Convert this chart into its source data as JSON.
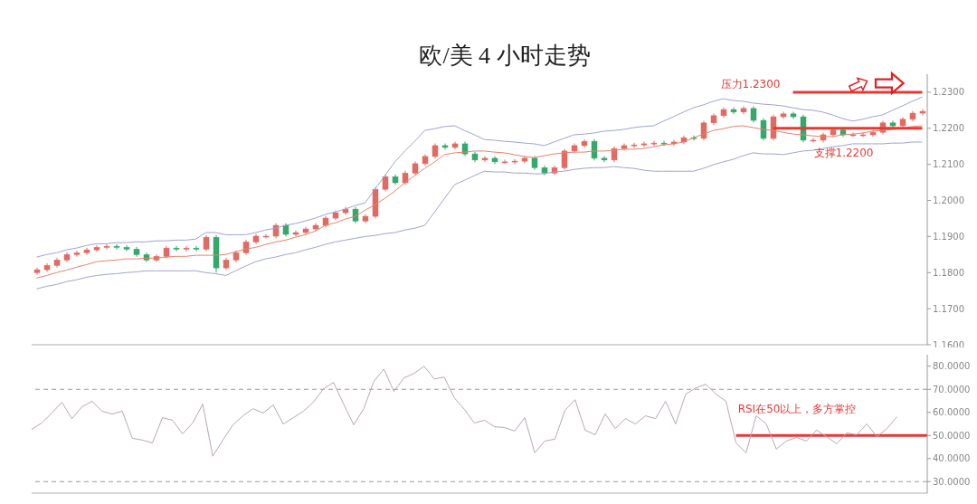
{
  "chart_data": [
    {
      "type": "candlestick",
      "title": "欧/美 4 小时走势",
      "categories": [
        null,
        null,
        null,
        null,
        null,
        null,
        null,
        null,
        null,
        null,
        null,
        null,
        null,
        null,
        null,
        null,
        null,
        null,
        null,
        null,
        null,
        null,
        null,
        null,
        null,
        null,
        null,
        null,
        null,
        null,
        null,
        null,
        null,
        null,
        null,
        null,
        null,
        null,
        null,
        null,
        null,
        null,
        null,
        null,
        null,
        null,
        null,
        null,
        null,
        null,
        null,
        null,
        null,
        null,
        null,
        null,
        null,
        null,
        null,
        null,
        null,
        null,
        null,
        null,
        null,
        null,
        null,
        null,
        null,
        null,
        null,
        null,
        null,
        null,
        null,
        null,
        null,
        null,
        null,
        null,
        null,
        null,
        null,
        null,
        null,
        null,
        null,
        null,
        null,
        null
      ],
      "ohlc": [
        [
          1.18,
          1.1814,
          1.1794,
          1.1808
        ],
        [
          1.1808,
          1.1826,
          1.1802,
          1.182
        ],
        [
          1.182,
          1.1841,
          1.1814,
          1.1835
        ],
        [
          1.1835,
          1.1856,
          1.1829,
          1.185
        ],
        [
          1.185,
          1.1861,
          1.1844,
          1.1855
        ],
        [
          1.1855,
          1.1869,
          1.1849,
          1.1863
        ],
        [
          1.1863,
          1.1876,
          1.1857,
          1.187
        ],
        [
          1.187,
          1.1879,
          1.1864,
          1.1873
        ],
        [
          1.1873,
          1.1879,
          1.1864,
          1.187
        ],
        [
          1.187,
          1.1876,
          1.1859,
          1.1865
        ],
        [
          1.1865,
          1.1871,
          1.1844,
          1.185
        ],
        [
          1.185,
          1.1856,
          1.1829,
          1.1835
        ],
        [
          1.1835,
          1.1851,
          1.1829,
          1.1845
        ],
        [
          1.1845,
          1.1874,
          1.1839,
          1.1868
        ],
        [
          1.1868,
          1.1874,
          1.1859,
          1.1865
        ],
        [
          1.1865,
          1.1874,
          1.1859,
          1.1868
        ],
        [
          1.1868,
          1.1874,
          1.1859,
          1.1865
        ],
        [
          1.1865,
          1.1904,
          1.1859,
          1.1898
        ],
        [
          1.1898,
          1.1904,
          1.18,
          1.1813
        ],
        [
          1.1813,
          1.1841,
          1.1807,
          1.1835
        ],
        [
          1.1835,
          1.1861,
          1.1829,
          1.1855
        ],
        [
          1.1855,
          1.1891,
          1.1849,
          1.1885
        ],
        [
          1.1885,
          1.1907,
          1.1879,
          1.1901
        ],
        [
          1.1901,
          1.1907,
          1.1895,
          1.1901
        ],
        [
          1.1901,
          1.1937,
          1.1895,
          1.1931
        ],
        [
          1.1931,
          1.1937,
          1.19,
          1.1906
        ],
        [
          1.1906,
          1.1917,
          1.19,
          1.1911
        ],
        [
          1.1911,
          1.1927,
          1.1905,
          1.1921
        ],
        [
          1.1921,
          1.1937,
          1.1915,
          1.1931
        ],
        [
          1.1931,
          1.1957,
          1.1925,
          1.1951
        ],
        [
          1.1951,
          1.1972,
          1.1945,
          1.1966
        ],
        [
          1.1966,
          1.1982,
          1.196,
          1.1976
        ],
        [
          1.1976,
          1.1982,
          1.1937,
          1.1943
        ],
        [
          1.1943,
          1.1962,
          1.1937,
          1.1956
        ],
        [
          1.1956,
          1.2037,
          1.195,
          1.2031
        ],
        [
          1.2031,
          1.2072,
          1.2025,
          1.2066
        ],
        [
          1.2066,
          1.2072,
          1.2043,
          1.2049
        ],
        [
          1.2049,
          1.2082,
          1.2043,
          1.2076
        ],
        [
          1.2076,
          1.2108,
          1.207,
          1.2102
        ],
        [
          1.2102,
          1.2128,
          1.2096,
          1.2122
        ],
        [
          1.2122,
          1.2158,
          1.2116,
          1.2152
        ],
        [
          1.2152,
          1.2158,
          1.2141,
          1.2147
        ],
        [
          1.2147,
          1.2163,
          1.2141,
          1.2157
        ],
        [
          1.2157,
          1.2163,
          1.2123,
          1.2129
        ],
        [
          1.2129,
          1.2135,
          1.2106,
          1.2112
        ],
        [
          1.2112,
          1.2123,
          1.2106,
          1.2117
        ],
        [
          1.2117,
          1.2123,
          1.2101,
          1.2107
        ],
        [
          1.2107,
          1.2113,
          1.2101,
          1.2107
        ],
        [
          1.2107,
          1.2115,
          1.2101,
          1.2109
        ],
        [
          1.2109,
          1.2123,
          1.2103,
          1.2117
        ],
        [
          1.2117,
          1.2123,
          1.2085,
          1.2091
        ],
        [
          1.2091,
          1.2097,
          1.207,
          1.2076
        ],
        [
          1.2076,
          1.2097,
          1.207,
          1.2091
        ],
        [
          1.2091,
          1.2143,
          1.2085,
          1.2137
        ],
        [
          1.2137,
          1.2158,
          1.2131,
          1.2152
        ],
        [
          1.2152,
          1.217,
          1.2146,
          1.2164
        ],
        [
          1.2164,
          1.217,
          1.2111,
          1.2117
        ],
        [
          1.2117,
          1.2123,
          1.2106,
          1.2112
        ],
        [
          1.2112,
          1.215,
          1.2106,
          1.2144
        ],
        [
          1.2144,
          1.2158,
          1.2138,
          1.2152
        ],
        [
          1.2152,
          1.216,
          1.2146,
          1.2154
        ],
        [
          1.2154,
          1.2163,
          1.2148,
          1.2157
        ],
        [
          1.2157,
          1.2165,
          1.2151,
          1.2159
        ],
        [
          1.2159,
          1.2165,
          1.2151,
          1.2157
        ],
        [
          1.2157,
          1.2168,
          1.2151,
          1.2162
        ],
        [
          1.2162,
          1.218,
          1.2156,
          1.2174
        ],
        [
          1.2174,
          1.218,
          1.2166,
          1.2172
        ],
        [
          1.2172,
          1.2221,
          1.2166,
          1.2215
        ],
        [
          1.2215,
          1.2241,
          1.2209,
          1.2235
        ],
        [
          1.2235,
          1.2258,
          1.2229,
          1.2252
        ],
        [
          1.2252,
          1.2258,
          1.2239,
          1.2245
        ],
        [
          1.2245,
          1.2261,
          1.2239,
          1.2255
        ],
        [
          1.2255,
          1.2261,
          1.2216,
          1.2222
        ],
        [
          1.2222,
          1.2228,
          1.2166,
          1.2172
        ],
        [
          1.2172,
          1.2238,
          1.2166,
          1.2232
        ],
        [
          1.2232,
          1.2246,
          1.2226,
          1.224
        ],
        [
          1.224,
          1.2246,
          1.2226,
          1.2232
        ],
        [
          1.2232,
          1.2238,
          1.2161,
          1.2167
        ],
        [
          1.2167,
          1.2173,
          1.2161,
          1.2167
        ],
        [
          1.2167,
          1.2188,
          1.2161,
          1.2182
        ],
        [
          1.2182,
          1.2201,
          1.2176,
          1.2195
        ],
        [
          1.2195,
          1.2201,
          1.2176,
          1.2182
        ],
        [
          1.2182,
          1.2188,
          1.2176,
          1.2182
        ],
        [
          1.2182,
          1.2188,
          1.2176,
          1.2182
        ],
        [
          1.2182,
          1.2195,
          1.2176,
          1.2189
        ],
        [
          1.2189,
          1.2221,
          1.2183,
          1.2215
        ],
        [
          1.2215,
          1.2221,
          1.2201,
          1.2207
        ],
        [
          1.2207,
          1.2231,
          1.2201,
          1.2225
        ],
        [
          1.2225,
          1.2248,
          1.2219,
          1.2242
        ],
        [
          1.2242,
          1.2253,
          1.2236,
          1.2247
        ]
      ],
      "colors": [
        "#e06b63",
        "#e06b63",
        "#e06b63",
        "#e06b63",
        "#e06b63",
        "#e06b63",
        "#e06b63",
        "#e06b63",
        "#35a86b",
        "#35a86b",
        "#35a86b",
        "#35a86b",
        "#e06b63",
        "#e06b63",
        "#35a86b",
        "#e06b63",
        "#35a86b",
        "#e06b63",
        "#35a86b",
        "#e06b63",
        "#e06b63",
        "#e06b63",
        "#e06b63",
        "#e06b63",
        "#e06b63",
        "#35a86b",
        "#e06b63",
        "#e06b63",
        "#e06b63",
        "#e06b63",
        "#e06b63",
        "#e06b63",
        "#35a86b",
        "#e06b63",
        "#e06b63",
        "#e06b63",
        "#35a86b",
        "#e06b63",
        "#e06b63",
        "#e06b63",
        "#e06b63",
        "#35a86b",
        "#e06b63",
        "#35a86b",
        "#35a86b",
        "#e06b63",
        "#35a86b",
        "#e06b63",
        "#e06b63",
        "#e06b63",
        "#35a86b",
        "#35a86b",
        "#e06b63",
        "#e06b63",
        "#e06b63",
        "#e06b63",
        "#35a86b",
        "#35a86b",
        "#e06b63",
        "#e06b63",
        "#e06b63",
        "#e06b63",
        "#e06b63",
        "#35a86b",
        "#e06b63",
        "#e06b63",
        "#35a86b",
        "#e06b63",
        "#e06b63",
        "#e06b63",
        "#35a86b",
        "#e06b63",
        "#35a86b",
        "#35a86b",
        "#e06b63",
        "#e06b63",
        "#35a86b",
        "#35a86b",
        "#e06b63",
        "#e06b63",
        "#e06b63",
        "#35a86b",
        "#e06b63",
        "#e06b63",
        "#e06b63",
        "#e06b63",
        "#35a86b",
        "#e06b63",
        "#e06b63",
        "#e06b63"
      ],
      "series": [
        {
          "type": "line",
          "color": "#9ea3d6",
          "values": [
            1.1843,
            1.185,
            1.1855,
            1.1863,
            1.1868,
            1.1875,
            1.188,
            1.188,
            1.1883,
            1.1883,
            1.1885,
            1.1885,
            1.1888,
            1.1888,
            1.189,
            1.189,
            1.1893,
            1.1911,
            1.1911,
            1.1905,
            1.1905,
            1.1905,
            1.1911,
            1.1918,
            1.1923,
            1.1931,
            1.1936,
            1.1943,
            1.1951,
            1.1961,
            1.1968,
            1.1976,
            1.1986,
            1.1993,
            1.2031,
            1.2069,
            1.2107,
            1.2137,
            1.2164,
            1.2194,
            1.2199,
            1.2205,
            1.2207,
            1.2194,
            1.2182,
            1.2169,
            1.2167,
            1.2164,
            1.2162,
            1.2159,
            1.2157,
            1.2152,
            1.2162,
            1.2172,
            1.2182,
            1.2184,
            1.2187,
            1.2192,
            1.2194,
            1.2197,
            1.2202,
            1.2205,
            1.2207,
            1.222,
            1.2232,
            1.2245,
            1.2257,
            1.2265,
            1.2275,
            1.2282,
            1.2277,
            1.2275,
            1.227,
            1.2267,
            1.2265,
            1.2262,
            1.2257,
            1.2252,
            1.225,
            1.2245,
            1.2237,
            1.2227,
            1.222,
            1.2225,
            1.2232,
            1.2237,
            1.225,
            1.2262,
            1.2275,
            1.2287
          ]
        },
        {
          "type": "line",
          "color": "#e8836a",
          "values": [
            1.1785,
            1.1792,
            1.18,
            1.1807,
            1.1815,
            1.1822,
            1.183,
            1.1833,
            1.1835,
            1.1838,
            1.1838,
            1.184,
            1.184,
            1.1843,
            1.1845,
            1.1845,
            1.1848,
            1.1848,
            1.1848,
            1.185,
            1.1858,
            1.1865,
            1.187,
            1.1878,
            1.1885,
            1.189,
            1.1898,
            1.1905,
            1.1915,
            1.1931,
            1.1938,
            1.1948,
            1.1956,
            1.1973,
            1.1988,
            1.2006,
            1.2026,
            1.2049,
            1.2069,
            1.2089,
            1.2107,
            1.2127,
            1.2132,
            1.2134,
            1.2137,
            1.2137,
            1.2134,
            1.2132,
            1.2127,
            1.2122,
            1.2119,
            1.2124,
            1.2129,
            1.2132,
            1.2134,
            1.2134,
            1.2137,
            1.2137,
            1.2139,
            1.2142,
            1.2142,
            1.2144,
            1.2149,
            1.2154,
            1.2157,
            1.2162,
            1.2174,
            1.2184,
            1.2194,
            1.2199,
            1.2205,
            1.2207,
            1.2202,
            1.2197,
            1.2194,
            1.2189,
            1.2184,
            1.2182,
            1.2179,
            1.2177,
            1.2177,
            1.2182,
            1.2184,
            1.2187,
            1.2192,
            1.2194,
            1.2197,
            1.2199,
            1.2205,
            1.2207
          ]
        },
        {
          "type": "line",
          "color": "#9ea3d6",
          "values": [
            1.1755,
            1.1762,
            1.1767,
            1.1775,
            1.178,
            1.1787,
            1.1792,
            1.1795,
            1.1797,
            1.18,
            1.1802,
            1.1805,
            1.1805,
            1.1805,
            1.1805,
            1.1805,
            1.1805,
            1.18,
            1.1797,
            1.1792,
            1.1805,
            1.1818,
            1.183,
            1.1838,
            1.1843,
            1.185,
            1.1855,
            1.1863,
            1.187,
            1.1878,
            1.1885,
            1.189,
            1.1895,
            1.19,
            1.1903,
            1.1908,
            1.1911,
            1.1918,
            1.1923,
            1.1931,
            1.1968,
            1.2006,
            1.2044,
            1.2056,
            1.2069,
            1.2081,
            1.2079,
            1.2079,
            1.2076,
            1.2076,
            1.2074,
            1.2074,
            1.2079,
            1.2081,
            1.2086,
            1.2089,
            1.2091,
            1.2091,
            1.2094,
            1.2091,
            1.2089,
            1.2084,
            1.2081,
            1.2081,
            1.2081,
            1.2081,
            1.2081,
            1.2089,
            1.2099,
            1.2107,
            1.2114,
            1.2124,
            1.2132,
            1.2129,
            1.2129,
            1.2127,
            1.2132,
            1.2137,
            1.2139,
            1.2144,
            1.2149,
            1.2152,
            1.2157,
            1.2157,
            1.2157,
            1.2157,
            1.2159,
            1.2159,
            1.2162,
            1.2162
          ]
        }
      ],
      "ylim": [
        1.16,
        1.235
      ],
      "yticks": [
        {
          "value": 1.16,
          "label": "1.1600"
        },
        {
          "value": 1.17,
          "label": "1.1700"
        },
        {
          "value": 1.18,
          "label": "1.1800"
        },
        {
          "value": 1.19,
          "label": "1.1900"
        },
        {
          "value": 1.2,
          "label": "1.2000"
        },
        {
          "value": 1.21,
          "label": "1.2100"
        },
        {
          "value": 1.22,
          "label": "1.2200"
        },
        {
          "value": 1.23,
          "label": "1.2300"
        }
      ],
      "tick_labels": "y",
      "ref_lines": [
        {
          "axis": "y",
          "value": 1.23,
          "label": "压力1.2300",
          "color": "#e53935"
        },
        {
          "axis": "y",
          "value": 1.22,
          "label": "支撑1.2200",
          "color": "#e53935"
        }
      ]
    },
    {
      "type": "line",
      "categories": [
        null,
        null,
        null,
        null,
        null,
        null,
        null,
        null,
        null,
        null,
        null,
        null,
        null,
        null,
        null,
        null,
        null,
        null,
        null,
        null,
        null,
        null,
        null,
        null,
        null,
        null,
        null,
        null,
        null,
        null,
        null,
        null,
        null,
        null,
        null,
        null,
        null,
        null,
        null,
        null,
        null,
        null,
        null,
        null,
        null,
        null,
        null,
        null,
        null,
        null,
        null,
        null,
        null,
        null,
        null,
        null,
        null,
        null,
        null,
        null,
        null,
        null,
        null,
        null,
        null,
        null,
        null,
        null,
        null,
        null,
        null,
        null,
        null,
        null,
        null,
        null,
        null,
        null,
        null,
        null,
        null,
        null,
        null,
        null,
        null,
        null,
        null,
        null,
        null,
        null
      ],
      "values": [
        52.7,
        55.4,
        59.7,
        64.4,
        57.3,
        62.4,
        64.8,
        60.5,
        59.3,
        60.5,
        48.8,
        48.0,
        46.8,
        57.7,
        56.6,
        50.7,
        55.4,
        63.6,
        41.0,
        48.0,
        54.6,
        58.5,
        61.6,
        59.7,
        63.2,
        55.0,
        57.7,
        60.5,
        64.4,
        70.2,
        73.0,
        63.6,
        54.6,
        61.6,
        73.4,
        78.8,
        69.1,
        74.9,
        76.9,
        80.0,
        74.5,
        75.3,
        66.3,
        61.3,
        55.4,
        56.6,
        53.8,
        53.4,
        51.9,
        57.7,
        42.5,
        47.6,
        48.4,
        60.9,
        65.5,
        52.3,
        50.3,
        59.3,
        53.0,
        57.3,
        55.0,
        58.5,
        57.3,
        64.8,
        55.0,
        67.9,
        70.6,
        72.2,
        67.9,
        64.8,
        46.8,
        42.5,
        58.5,
        55.0,
        44.1,
        47.6,
        49.1,
        47.6,
        52.3,
        49.5,
        46.4,
        51.1,
        50.3,
        55.0,
        49.5,
        53.0,
        58.1,
        null,
        null,
        null
      ],
      "color": "#b9a6b6",
      "ylim": [
        25,
        85
      ],
      "yticks": [
        {
          "value": 30,
          "label": "30.0000"
        },
        {
          "value": 40,
          "label": "40.0000"
        },
        {
          "value": 50,
          "label": "50.0000"
        },
        {
          "value": 60,
          "label": "60.0000"
        },
        {
          "value": 70,
          "label": "70.0000"
        },
        {
          "value": 80,
          "label": "80.0000"
        }
      ],
      "tick_labels": "y",
      "ref_lines": [
        {
          "axis": "y",
          "value": 70,
          "color": "#999999",
          "line_style": "dashed"
        },
        {
          "axis": "y",
          "value": 30,
          "color": "#999999",
          "line_style": "dashed"
        },
        {
          "axis": "y",
          "value": 50,
          "label": "RSI在50以上，多方掌控",
          "color": "#e53935"
        }
      ]
    }
  ]
}
